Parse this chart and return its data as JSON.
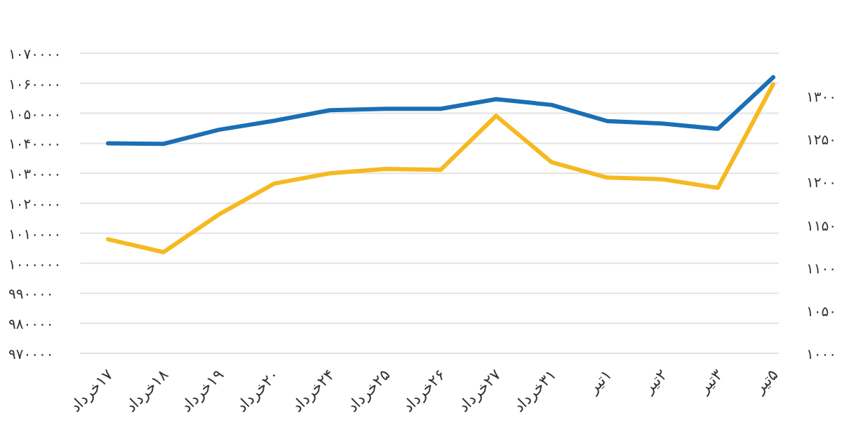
{
  "chart_data": {
    "type": "line",
    "categories": [
      "۱۷خرداد",
      "۱۸خرداد",
      "۱۹خرداد",
      "۲۰خرداد",
      "۲۴خرداد",
      "۲۵خرداد",
      "۲۶خرداد",
      "۲۷خرداد",
      "۳۱خرداد",
      "۱تیر",
      "۲تیر",
      "۳تیر",
      "۵تیر"
    ],
    "series": [
      {
        "color": "#1a6fb5",
        "values": [
          1040000,
          1039800,
          1044500,
          1047500,
          1051000,
          1051500,
          1051500,
          1054700,
          1052800,
          1047400,
          1046600,
          1044800,
          1062000
        ]
      },
      {
        "color": "#f5b921",
        "axis": "y2",
        "values": [
          1133,
          1118,
          1162,
          1198,
          1210,
          1215,
          1214,
          1277,
          1223,
          1205,
          1203,
          1193,
          1314
        ]
      }
    ],
    "ylim": [
      970000,
      1070000
    ],
    "yticks": [
      {
        "value": 970000,
        "label": "۹۷۰۰۰۰"
      },
      {
        "value": 980000,
        "label": "۹۸۰۰۰۰"
      },
      {
        "value": 990000,
        "label": "۹۹۰۰۰۰"
      },
      {
        "value": 1000000,
        "label": "۱۰۰۰۰۰۰"
      },
      {
        "value": 1010000,
        "label": "۱۰۱۰۰۰۰"
      },
      {
        "value": 1020000,
        "label": "۱۰۲۰۰۰۰"
      },
      {
        "value": 1030000,
        "label": "۱۰۳۰۰۰۰"
      },
      {
        "value": 1040000,
        "label": "۱۰۴۰۰۰۰"
      },
      {
        "value": 1050000,
        "label": "۱۰۵۰۰۰۰"
      },
      {
        "value": 1060000,
        "label": "۱۰۶۰۰۰۰"
      },
      {
        "value": 1070000,
        "label": "۱۰۷۰۰۰۰"
      }
    ],
    "y2lim": [
      1000,
      1350
    ],
    "y2ticks": [
      {
        "value": 1000,
        "label": "۱۰۰۰"
      },
      {
        "value": 1050,
        "label": "۱۰۵۰"
      },
      {
        "value": 1100,
        "label": "۱۱۰۰"
      },
      {
        "value": 1150,
        "label": "۱۱۵۰"
      },
      {
        "value": 1200,
        "label": "۱۲۰۰"
      },
      {
        "value": 1250,
        "label": "۱۲۵۰"
      },
      {
        "value": 1300,
        "label": "۱۳۰۰"
      }
    ],
    "grid": "y",
    "marker": "none",
    "line_style": "solid"
  }
}
